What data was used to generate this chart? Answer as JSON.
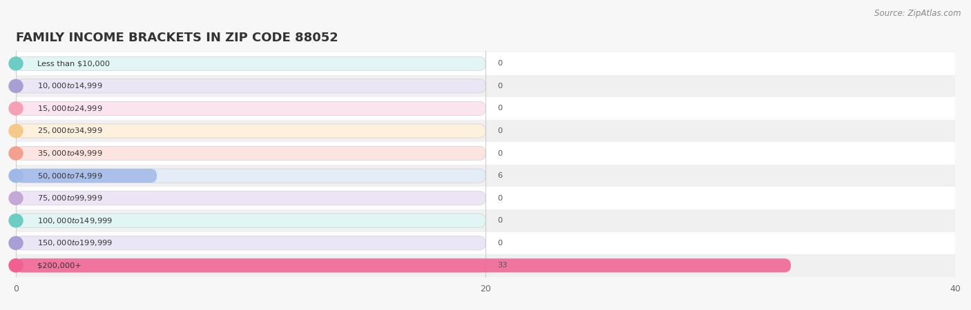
{
  "title": "FAMILY INCOME BRACKETS IN ZIP CODE 88052",
  "source": "Source: ZipAtlas.com",
  "categories": [
    "Less than $10,000",
    "$10,000 to $14,999",
    "$15,000 to $24,999",
    "$25,000 to $34,999",
    "$35,000 to $49,999",
    "$50,000 to $74,999",
    "$75,000 to $99,999",
    "$100,000 to $149,999",
    "$150,000 to $199,999",
    "$200,000+"
  ],
  "values": [
    0,
    0,
    0,
    0,
    0,
    6,
    0,
    0,
    0,
    33
  ],
  "bar_colors": [
    "#6dcdc4",
    "#a89fd4",
    "#f4a0b5",
    "#f4c98a",
    "#f4a090",
    "#a0b8e8",
    "#c4a8d8",
    "#6dcdc4",
    "#a89fd4",
    "#f06090"
  ],
  "label_bg_colors": [
    "#e0f5f4",
    "#eae6f6",
    "#fce4ee",
    "#fdf0dc",
    "#fce4e0",
    "#e4ecf8",
    "#ede4f6",
    "#e0f5f4",
    "#eae6f6",
    "#fce4ee"
  ],
  "xlim": [
    0,
    40
  ],
  "xticks": [
    0,
    20,
    40
  ],
  "background_color": "#f7f7f7",
  "title_fontsize": 13,
  "source_fontsize": 8.5,
  "label_bar_width": 20.0,
  "bar_height": 0.62
}
